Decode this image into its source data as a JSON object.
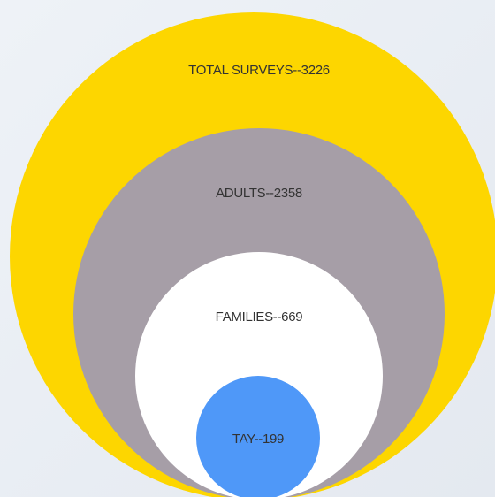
{
  "nodes": [
    {
      "label": "TOTAL SURVEYS--3226"
    },
    {
      "label": "ADULTS--2358"
    },
    {
      "label": "FAMILIES--669"
    },
    {
      "label": "TAY--199"
    }
  ]
}
